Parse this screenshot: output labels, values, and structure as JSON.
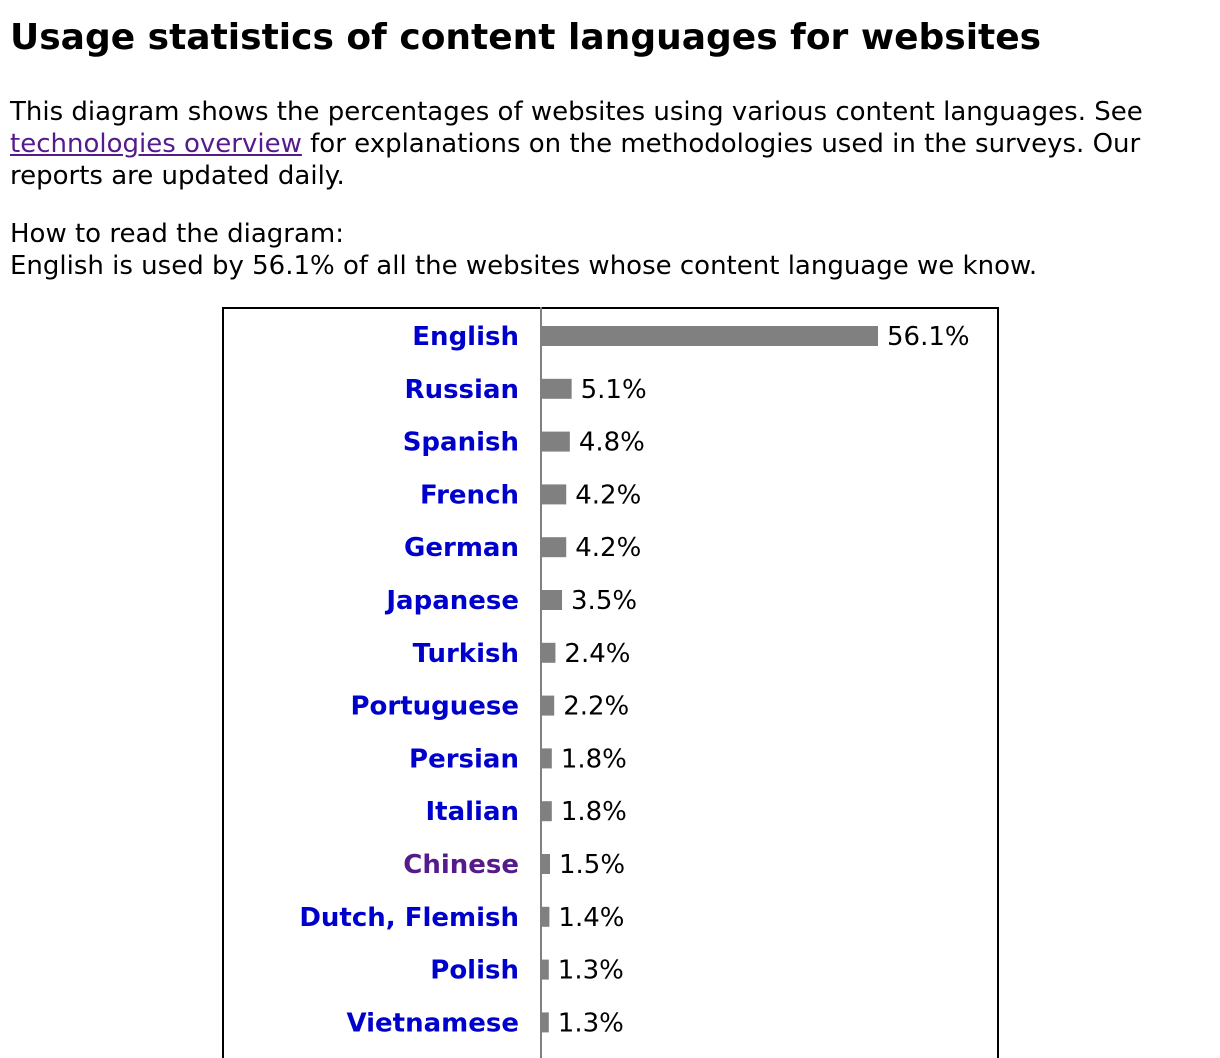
{
  "page": {
    "title": "Usage statistics of content languages for websites",
    "intro_before_link": "This diagram shows the percentages of websites using various content languages. See ",
    "intro_link": "technologies overview",
    "intro_after_link": " for explanations on the methodologies used in the surveys. Our reports are updated daily.",
    "how_heading": "How to read the diagram:",
    "how_text": "English is used by 56.1% of all the websites whose content language we know."
  },
  "colors": {
    "link": "#0000cc",
    "visited_link": "#551a8b",
    "bar": "#808080",
    "axis": "#808080"
  },
  "chart_data": {
    "type": "bar",
    "orientation": "horizontal",
    "categories": [
      "English",
      "Russian",
      "Spanish",
      "French",
      "German",
      "Japanese",
      "Turkish",
      "Portuguese",
      "Persian",
      "Italian",
      "Chinese",
      "Dutch, Flemish",
      "Polish",
      "Vietnamese"
    ],
    "values": [
      56.1,
      5.1,
      4.8,
      4.2,
      4.2,
      3.5,
      2.4,
      2.2,
      1.8,
      1.8,
      1.5,
      1.4,
      1.3,
      1.3
    ],
    "value_labels": [
      "56.1%",
      "5.1%",
      "4.8%",
      "4.2%",
      "4.2%",
      "3.5%",
      "2.4%",
      "2.2%",
      "1.8%",
      "1.8%",
      "1.5%",
      "1.4%",
      "1.3%",
      "1.3%"
    ],
    "visited": [
      false,
      false,
      false,
      false,
      false,
      false,
      false,
      false,
      false,
      false,
      true,
      false,
      false,
      false
    ],
    "unit": "%",
    "xlim": [
      0,
      56.1
    ],
    "grid": false,
    "legend": false
  }
}
